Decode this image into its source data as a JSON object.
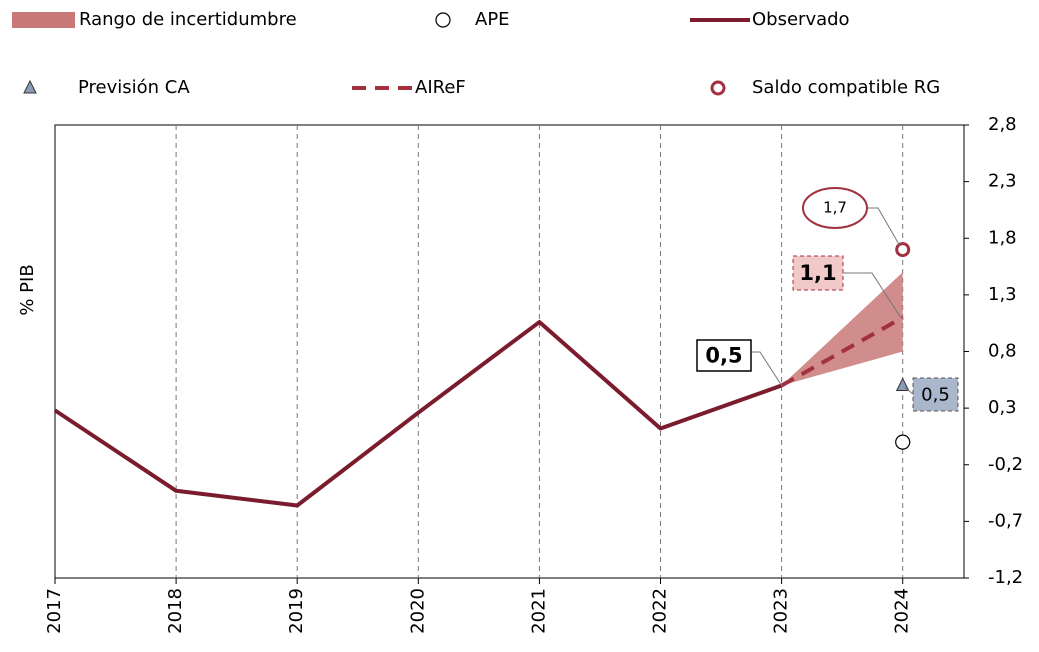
{
  "chart_data": {
    "type": "line",
    "y_label": "% PIB",
    "categories": [
      "2017",
      "2018",
      "2019",
      "2020",
      "2021",
      "2022",
      "2023",
      "2024"
    ],
    "ylim": [
      -1.2,
      2.8
    ],
    "yticks": [
      {
        "value": 2.8,
        "label": "2,8"
      },
      {
        "value": 2.3,
        "label": "2,3"
      },
      {
        "value": 1.8,
        "label": "1,8"
      },
      {
        "value": 1.3,
        "label": "1,3"
      },
      {
        "value": 0.8,
        "label": "0,8"
      },
      {
        "value": 0.3,
        "label": "0,3"
      },
      {
        "value": -0.2,
        "label": "-0,2"
      },
      {
        "value": -0.7,
        "label": "-0,7"
      },
      {
        "value": -1.2,
        "label": "-1,2"
      }
    ],
    "grid": true,
    "range": {
      "name": "Rango de incertidumbre",
      "color": "#c97878",
      "lower": [
        null,
        null,
        null,
        null,
        null,
        null,
        0.5,
        0.8
      ],
      "upper": [
        null,
        null,
        null,
        null,
        null,
        null,
        0.5,
        1.5
      ]
    },
    "series": [
      {
        "name": "APE",
        "kind": "marker",
        "marker": "circle",
        "color": "#ffffff",
        "values": [
          null,
          null,
          null,
          null,
          null,
          null,
          null,
          0.0
        ]
      },
      {
        "name": "Observado",
        "kind": "line",
        "color": "#7b1c2e",
        "values": [
          0.28,
          -0.43,
          -0.56,
          0.26,
          1.06,
          0.12,
          0.5,
          null
        ],
        "value_labels": [
          null,
          null,
          null,
          null,
          null,
          null,
          "0,5",
          null
        ]
      },
      {
        "name": "Previsión CA",
        "kind": "marker",
        "marker": "triangle",
        "color": "#8a9bb5",
        "values": [
          null,
          null,
          null,
          null,
          null,
          null,
          null,
          0.5
        ],
        "value_labels": [
          null,
          null,
          null,
          null,
          null,
          null,
          null,
          "0,5"
        ]
      },
      {
        "name": "AIReF",
        "kind": "dashed",
        "color": "#a3303f",
        "values": [
          null,
          null,
          null,
          null,
          null,
          null,
          0.5,
          1.1
        ],
        "value_labels": [
          null,
          null,
          null,
          null,
          null,
          null,
          null,
          "1,1"
        ]
      },
      {
        "name": "Saldo compatible RG",
        "kind": "marker",
        "marker": "ring",
        "color": "#a3303f",
        "values": [
          null,
          null,
          null,
          null,
          null,
          null,
          null,
          1.7
        ],
        "value_labels": [
          null,
          null,
          null,
          null,
          null,
          null,
          null,
          "1,7"
        ]
      }
    ]
  }
}
